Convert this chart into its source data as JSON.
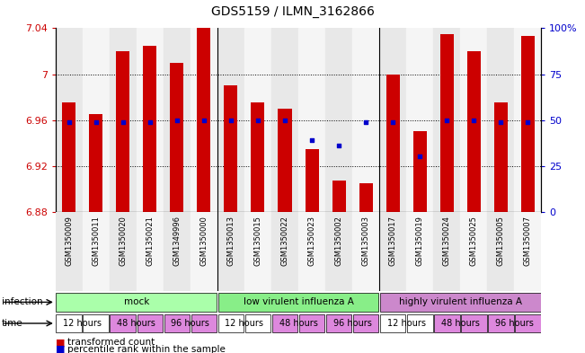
{
  "title": "GDS5159 / ILMN_3162866",
  "samples": [
    "GSM1350009",
    "GSM1350011",
    "GSM1350020",
    "GSM1350021",
    "GSM1349996",
    "GSM1350000",
    "GSM1350013",
    "GSM1350015",
    "GSM1350022",
    "GSM1350023",
    "GSM1350002",
    "GSM1350003",
    "GSM1350017",
    "GSM1350019",
    "GSM1350024",
    "GSM1350025",
    "GSM1350005",
    "GSM1350007"
  ],
  "transformed_counts": [
    6.975,
    6.965,
    7.02,
    7.025,
    7.01,
    7.04,
    6.99,
    6.975,
    6.97,
    6.935,
    6.907,
    6.905,
    7.0,
    6.95,
    7.035,
    7.02,
    6.975,
    7.033
  ],
  "percentile_ranks": [
    49,
    49,
    49,
    49,
    50,
    50,
    50,
    50,
    50,
    39,
    36,
    49,
    49,
    30,
    50,
    50,
    49,
    49
  ],
  "ylim_left": [
    6.88,
    7.04
  ],
  "ylim_right": [
    0,
    100
  ],
  "yticks_left": [
    6.88,
    6.92,
    6.96,
    7.0,
    7.04
  ],
  "yticks_right": [
    0,
    25,
    50,
    75,
    100
  ],
  "ytick_labels_left": [
    "6.88",
    "6.92",
    "6.96",
    "7",
    "7.04"
  ],
  "ytick_labels_right": [
    "0",
    "25",
    "50",
    "75",
    "100%"
  ],
  "bar_color": "#cc0000",
  "dot_color": "#0000cc",
  "bar_bottom": 6.88,
  "infection_groups": [
    {
      "label": "mock",
      "start": 0,
      "end": 6,
      "color": "#aaffaa"
    },
    {
      "label": "low virulent influenza A",
      "start": 6,
      "end": 12,
      "color": "#88ee88"
    },
    {
      "label": "highly virulent influenza A",
      "start": 12,
      "end": 18,
      "color": "#cc88cc"
    }
  ],
  "time_labels_per_sample": [
    "12 hours",
    "12 hours",
    "48 hours",
    "48 hours",
    "96 hours",
    "96 hours",
    "12 hours",
    "12 hours",
    "48 hours",
    "48 hours",
    "96 hours",
    "96 hours",
    "12 hours",
    "12 hours",
    "48 hours",
    "48 hours",
    "96 hours",
    "96 hours"
  ],
  "time_colors": {
    "12 hours": "#ffffff",
    "48 hours": "#dd88dd",
    "96 hours": "#dd88dd"
  },
  "legend_items": [
    {
      "label": "transformed count",
      "color": "#cc0000"
    },
    {
      "label": "percentile rank within the sample",
      "color": "#0000cc"
    }
  ],
  "background_color": "#ffffff",
  "grid_color": "#888888",
  "col_bg_colors": [
    "#e8e8e8",
    "#f5f5f5"
  ]
}
